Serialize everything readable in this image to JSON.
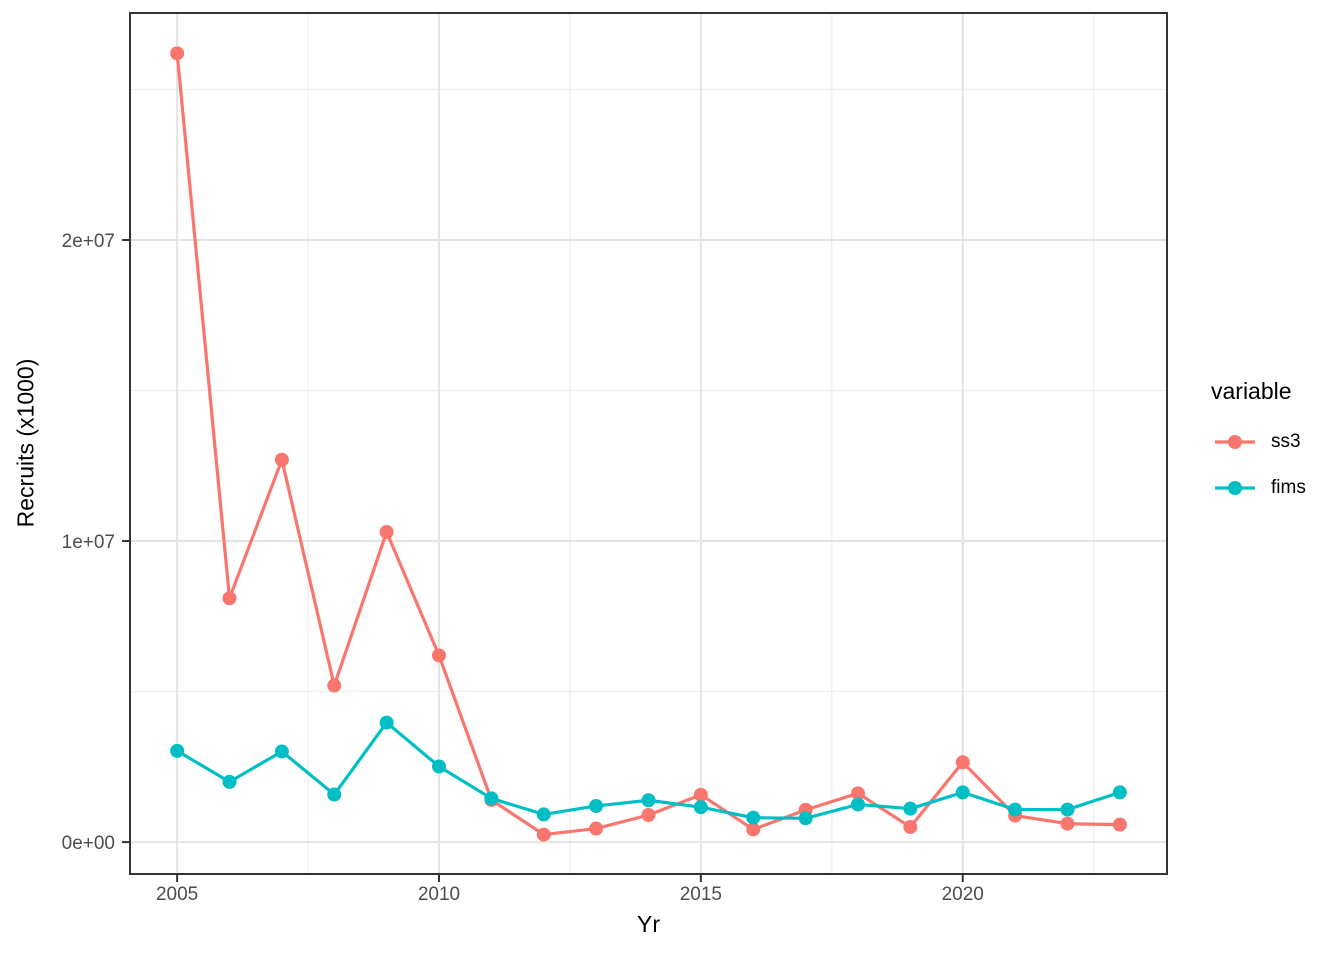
{
  "figure": {
    "background": "#FFFFFF"
  },
  "chart_data": {
    "type": "line",
    "title": "",
    "xlabel": "Yr",
    "ylabel": "Recruits (x1000)",
    "x": [
      2005,
      2006,
      2007,
      2008,
      2009,
      2010,
      2011,
      2012,
      2013,
      2014,
      2015,
      2016,
      2017,
      2018,
      2019,
      2020,
      2021,
      2022,
      2023
    ],
    "series": [
      {
        "name": "ss3",
        "color": "#F8766D",
        "values": [
          26200000,
          8100000,
          12700000,
          5200000,
          10300000,
          6200000,
          1400000,
          250000,
          450000,
          900000,
          1570000,
          420000,
          1070000,
          1620000,
          500000,
          2650000,
          880000,
          610000,
          580000
        ]
      },
      {
        "name": "fims",
        "color": "#00BFC4",
        "values": [
          3030000,
          2000000,
          3010000,
          1580000,
          3970000,
          2510000,
          1450000,
          920000,
          1200000,
          1390000,
          1160000,
          810000,
          790000,
          1250000,
          1110000,
          1650000,
          1080000,
          1080000,
          1650000
        ]
      }
    ],
    "x_domain": [
      2004.1,
      2023.9
    ],
    "y_domain": [
      -1060000,
      27540000
    ],
    "x_ticks": {
      "major": [
        2005,
        2010,
        2015,
        2020
      ],
      "labels": [
        "2005",
        "2010",
        "2015",
        "2020"
      ],
      "minor": [
        2007.5,
        2012.5,
        2017.5,
        2022.5
      ]
    },
    "y_ticks": {
      "major": [
        0,
        10000000,
        20000000
      ],
      "labels": [
        "0e+00",
        "1e+07",
        "2e+07"
      ],
      "minor": [
        5000000,
        15000000,
        25000000
      ]
    },
    "grid": true,
    "legend": {
      "title": "variable",
      "position": "right"
    },
    "theme": {
      "panel_background": "#FFFFFF",
      "panel_border": "#333333",
      "grid_major": "#E4E4E4",
      "grid_minor": "#EFEFEF",
      "tick_color": "#333333",
      "tick_label_color": "#4D4D4D",
      "axis_title_color": "#000000"
    }
  }
}
